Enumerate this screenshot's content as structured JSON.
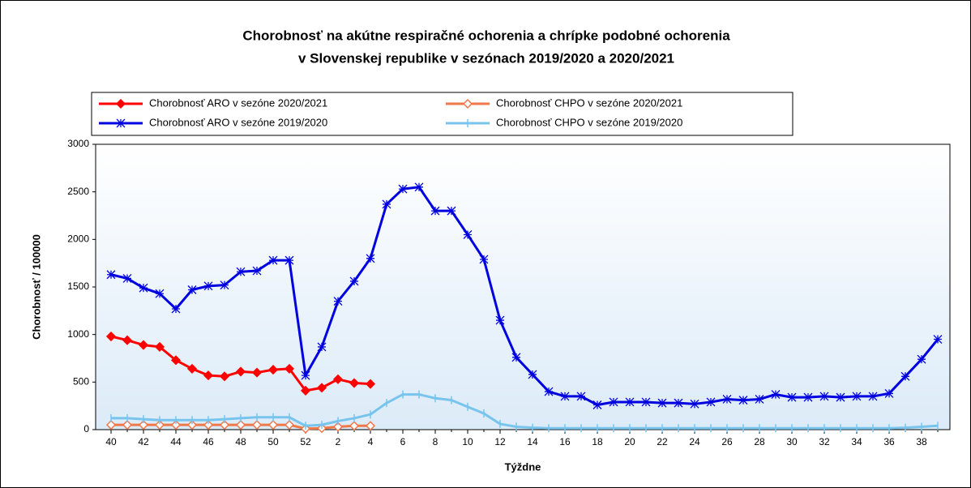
{
  "chart_data": {
    "type": "line",
    "title": [
      "Chorobnosť na akútne respiračné ochorenia a chrípke podobné ochorenia",
      "v Slovenskej republike v sezónach 2019/2020 a 2020/2021"
    ],
    "xlabel": "Týždne",
    "ylabel": "Chorobnosť / 100000",
    "categories": [
      40,
      null,
      42,
      null,
      44,
      null,
      46,
      null,
      48,
      null,
      50,
      null,
      52,
      null,
      2,
      null,
      4,
      null,
      6,
      null,
      8,
      null,
      10,
      null,
      12,
      null,
      14,
      null,
      16,
      null,
      18,
      null,
      20,
      null,
      22,
      null,
      24,
      null,
      26,
      null,
      28,
      null,
      30,
      null,
      32,
      null,
      34,
      null,
      36,
      null,
      38,
      null
    ],
    "ylim": [
      0,
      3000
    ],
    "yticks": [
      0,
      500,
      1000,
      1500,
      2000,
      2500,
      3000
    ],
    "grid": false,
    "series": [
      {
        "name": "Chorobnosť ARO v sezóne 2020/2021",
        "color": "#ff0000",
        "marker": "diamond",
        "values": [
          980,
          940,
          890,
          870,
          730,
          640,
          570,
          560,
          610,
          600,
          630,
          640,
          410,
          440,
          530,
          490,
          480,
          null,
          null,
          null,
          null,
          null,
          null,
          null,
          null,
          null,
          null,
          null,
          null,
          null,
          null,
          null,
          null,
          null,
          null,
          null,
          null,
          null,
          null,
          null,
          null,
          null,
          null,
          null,
          null,
          null,
          null,
          null,
          null,
          null,
          null,
          null
        ]
      },
      {
        "name": "Chorobnosť CHPO v sezóne 2020/2021",
        "color": "#f07848",
        "marker": "diamond-open",
        "values": [
          50,
          50,
          50,
          50,
          50,
          50,
          50,
          50,
          50,
          50,
          50,
          50,
          10,
          15,
          30,
          40,
          40,
          null,
          null,
          null,
          null,
          null,
          null,
          null,
          null,
          null,
          null,
          null,
          null,
          null,
          null,
          null,
          null,
          null,
          null,
          null,
          null,
          null,
          null,
          null,
          null,
          null,
          null,
          null,
          null,
          null,
          null,
          null,
          null,
          null,
          null,
          null
        ]
      },
      {
        "name": "Chorobnosť ARO v sezóne 2019/2020",
        "color": "#0000e0",
        "marker": "asterisk",
        "values": [
          1630,
          1590,
          1490,
          1430,
          1270,
          1470,
          1510,
          1520,
          1660,
          1670,
          1780,
          1780,
          570,
          870,
          1350,
          1560,
          1800,
          2370,
          2530,
          2550,
          2300,
          2300,
          2050,
          1790,
          1150,
          760,
          580,
          400,
          350,
          350,
          260,
          290,
          290,
          290,
          280,
          280,
          270,
          290,
          320,
          310,
          320,
          370,
          340,
          340,
          350,
          340,
          350,
          350,
          380,
          560,
          740,
          950
        ]
      },
      {
        "name": "Chorobnosť CHPO v sezóne 2019/2020",
        "color": "#78c4ec",
        "marker": "plus",
        "values": [
          120,
          120,
          110,
          100,
          100,
          100,
          100,
          110,
          120,
          130,
          130,
          130,
          40,
          50,
          90,
          120,
          160,
          280,
          370,
          370,
          330,
          310,
          240,
          170,
          60,
          30,
          20,
          15,
          15,
          15,
          15,
          15,
          15,
          15,
          15,
          15,
          15,
          15,
          15,
          15,
          15,
          15,
          15,
          15,
          15,
          15,
          15,
          15,
          15,
          20,
          30,
          40
        ]
      }
    ]
  }
}
